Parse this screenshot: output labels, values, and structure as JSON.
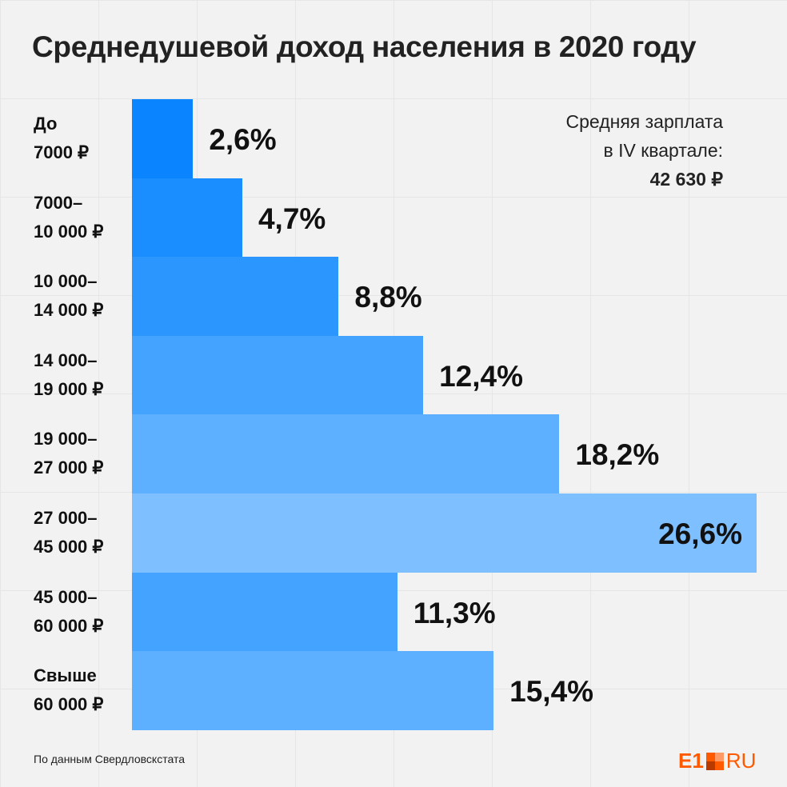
{
  "chart_data": {
    "type": "bar",
    "orientation": "horizontal",
    "title": "Среднедушевой доход населения в 2020 году",
    "categories": [
      [
        "До",
        "7000 ₽"
      ],
      [
        "7000–",
        "10 000 ₽"
      ],
      [
        "10 000–",
        "14 000 ₽"
      ],
      [
        "14 000–",
        "19 000 ₽"
      ],
      [
        "19 000–",
        "27 000 ₽"
      ],
      [
        "27 000–",
        "45 000 ₽"
      ],
      [
        "45 000–",
        "60 000 ₽"
      ],
      [
        "Свыше",
        "60 000 ₽"
      ]
    ],
    "values": [
      2.6,
      4.7,
      8.8,
      12.4,
      18.2,
      26.6,
      11.3,
      15.4
    ],
    "labels": [
      "2,6%",
      "4,7%",
      "8,8%",
      "12,4%",
      "18,2%",
      "26,6%",
      "11,3%",
      "15,4%"
    ],
    "colors": [
      "#0a84ff",
      "#1a8dff",
      "#2c96ff",
      "#44a3ff",
      "#5cb0ff",
      "#7ebfff",
      "#44a3ff",
      "#5cb0ff"
    ],
    "xlim": [
      0,
      26.6
    ],
    "grid": false
  },
  "note": {
    "line1": "Средняя зарплата",
    "line2": "в IV квартале:",
    "value": "42 630 ₽"
  },
  "source": "По данным Свердловскстата",
  "logo": {
    "text": "E1",
    "suffix": "RU",
    "color": "#ff5a00"
  }
}
